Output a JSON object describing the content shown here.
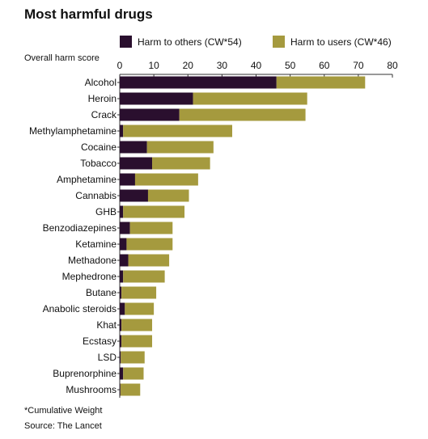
{
  "chart_data": {
    "type": "bar",
    "orientation": "horizontal",
    "stacked": true,
    "title": "Most harmful drugs",
    "xlabel": "Overall harm score",
    "xlim": [
      0,
      80
    ],
    "xticks": [
      0,
      10,
      20,
      30,
      40,
      50,
      60,
      70,
      80
    ],
    "grid": false,
    "legend_position": "top",
    "categories": [
      "Alcohol",
      "Heroin",
      "Crack",
      "Methylamphetamine",
      "Cocaine",
      "Tobacco",
      "Amphetamine",
      "Cannabis",
      "GHB",
      "Benzodiazepines",
      "Ketamine",
      "Methadone",
      "Mephedrone",
      "Butane",
      "Anabolic steroids",
      "Khat",
      "Ecstasy",
      "LSD",
      "Buprenorphine",
      "Mushrooms"
    ],
    "series": [
      {
        "name": "Harm to others (CW*54)",
        "color": "#2a0f2e",
        "values": [
          46,
          21.5,
          17.5,
          1,
          8,
          9.5,
          4.5,
          8.3,
          1,
          3,
          2,
          2.5,
          1,
          0.5,
          1.5,
          0.5,
          0.5,
          0.3,
          1,
          0.2
        ]
      },
      {
        "name": "Harm to users (CW*46)",
        "color": "#a59a3e",
        "values": [
          26,
          33.5,
          37,
          32,
          19.5,
          17,
          18.5,
          12,
          18,
          12.5,
          13.5,
          12,
          12.2,
          10.2,
          8.5,
          9,
          9,
          7,
          6,
          5.8
        ]
      }
    ]
  },
  "footnote": "*Cumulative Weight",
  "source": "Source: The Lancet"
}
